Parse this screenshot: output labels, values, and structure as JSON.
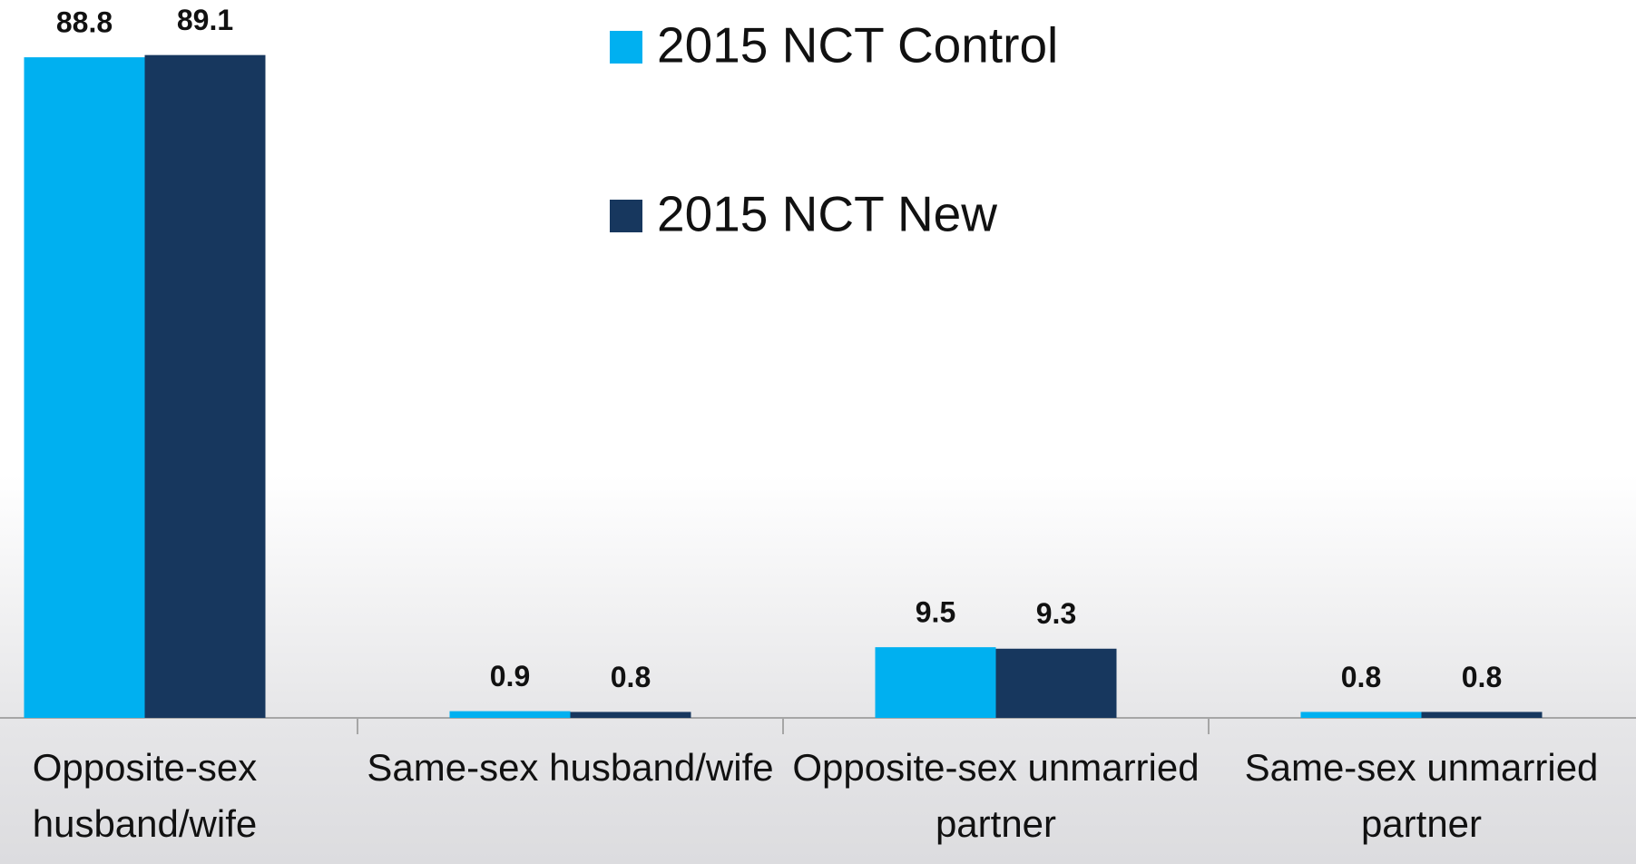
{
  "chart_data": {
    "type": "bar",
    "categories": [
      "Opposite-sex husband/wife",
      "Same-sex husband/wife",
      "Opposite-sex unmarried partner",
      "Same-sex unmarried partner"
    ],
    "series": [
      {
        "name": "2015 NCT Control",
        "color": "#00b0f0",
        "values": [
          88.8,
          0.9,
          9.5,
          0.8
        ]
      },
      {
        "name": "2015 NCT New",
        "color": "#17375e",
        "values": [
          89.1,
          0.8,
          9.3,
          0.8
        ]
      }
    ],
    "ylim": [
      0,
      96.5
    ],
    "legend": "top-center"
  }
}
